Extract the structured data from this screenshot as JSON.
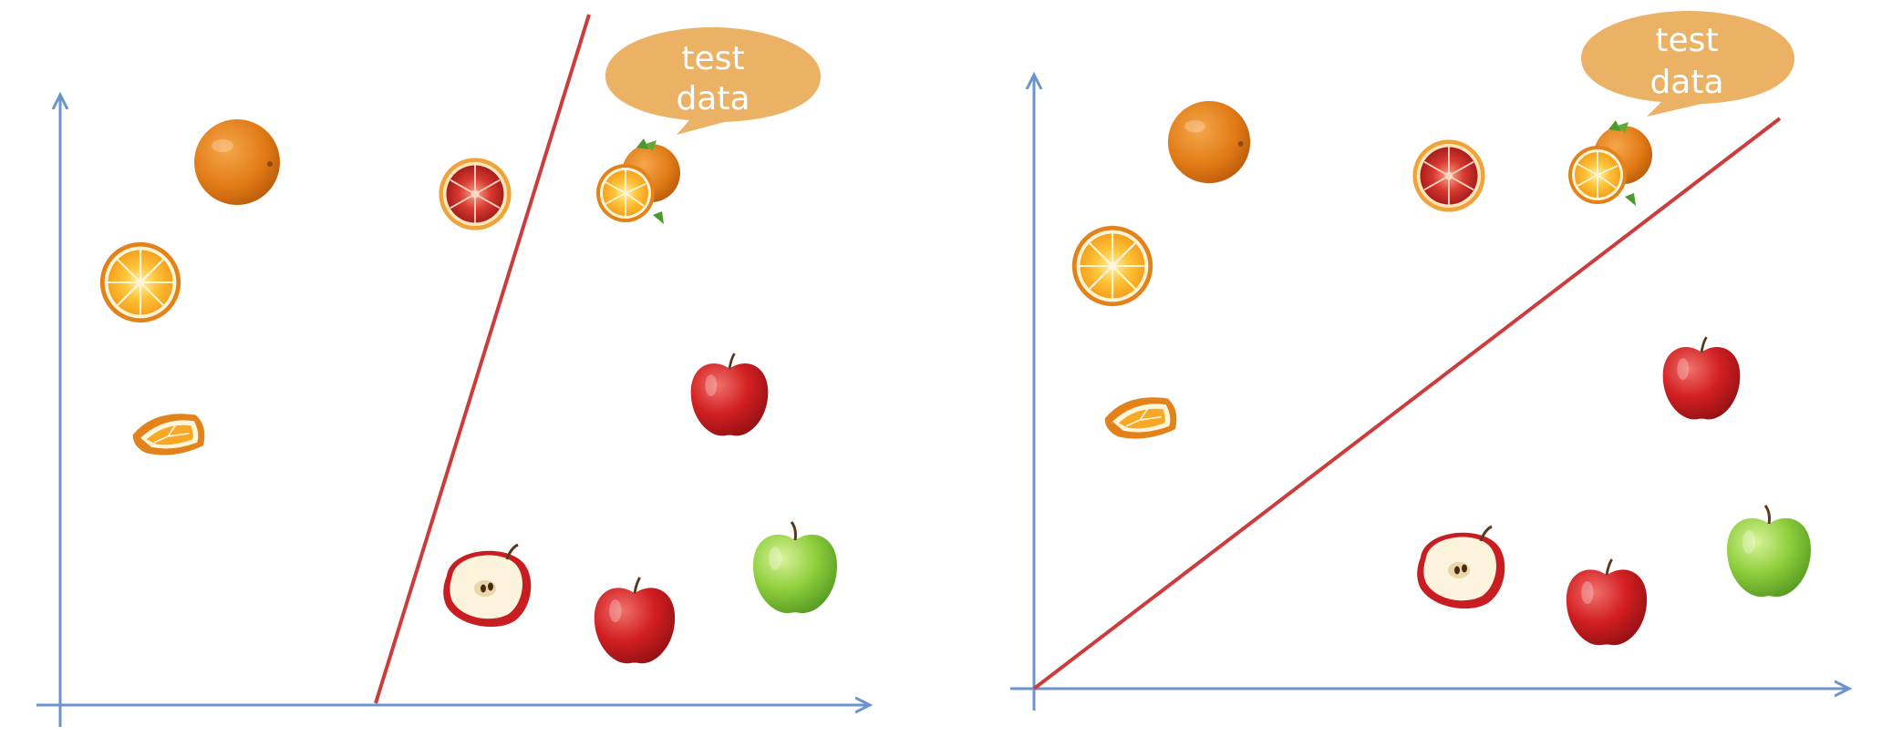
{
  "colors": {
    "axis": "#6b93cc",
    "boundary": "#cc3c3c",
    "bubble": "#ebb265",
    "bubble_text": "#ffffff"
  },
  "panels": [
    {
      "name": "left-panel",
      "bubble": {
        "line1": "test",
        "line2": "data"
      },
      "fruits": [
        {
          "kind": "orange-whole",
          "label": "orange"
        },
        {
          "kind": "orange-half",
          "label": "orange half"
        },
        {
          "kind": "orange-wedge",
          "label": "orange wedge"
        },
        {
          "kind": "blood-orange",
          "label": "blood orange"
        },
        {
          "kind": "orange-test",
          "label": "test orange"
        },
        {
          "kind": "apple-red",
          "label": "red apple"
        },
        {
          "kind": "apple-half",
          "label": "apple half"
        },
        {
          "kind": "apple-red",
          "label": "red apple"
        },
        {
          "kind": "apple-green",
          "label": "green apple"
        }
      ]
    },
    {
      "name": "right-panel",
      "bubble": {
        "line1": "test",
        "line2": "data"
      },
      "fruits": [
        {
          "kind": "orange-whole",
          "label": "orange"
        },
        {
          "kind": "orange-half",
          "label": "orange half"
        },
        {
          "kind": "orange-wedge",
          "label": "orange wedge"
        },
        {
          "kind": "blood-orange",
          "label": "blood orange"
        },
        {
          "kind": "orange-test",
          "label": "test orange"
        },
        {
          "kind": "apple-red",
          "label": "red apple"
        },
        {
          "kind": "apple-half",
          "label": "apple half"
        },
        {
          "kind": "apple-red",
          "label": "red apple"
        },
        {
          "kind": "apple-green",
          "label": "green apple"
        }
      ]
    }
  ]
}
